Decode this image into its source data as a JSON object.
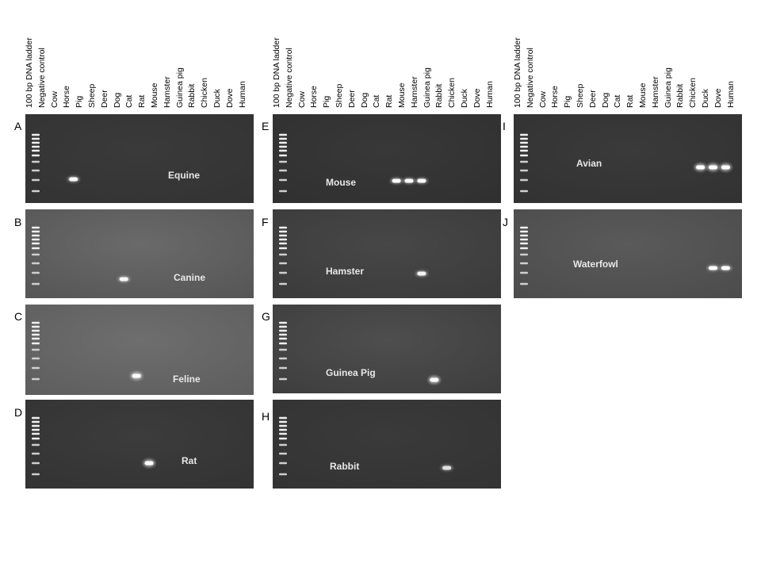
{
  "lane_labels": [
    "100 bp DNA ladder",
    "Negative control",
    "Cow",
    "Horse",
    "Pig",
    "Sheep",
    "Deer",
    "Dog",
    "Cat",
    "Rat",
    "Mouse",
    "Hamster",
    "Guinea pig",
    "Rabbit",
    "Chicken",
    "Duck",
    "Dove",
    "Human"
  ],
  "panels": [
    {
      "letter": "A",
      "label": "Equine",
      "bands": [
        {
          "lane": 3,
          "intensity": 0.95
        }
      ]
    },
    {
      "letter": "B",
      "label": "Canine",
      "bands": [
        {
          "lane": 7,
          "intensity": 0.9
        }
      ]
    },
    {
      "letter": "C",
      "label": "Feline",
      "bands": [
        {
          "lane": 8,
          "intensity": 1.0
        }
      ]
    },
    {
      "letter": "D",
      "label": "Rat",
      "bands": [
        {
          "lane": 9,
          "intensity": 1.0
        }
      ]
    },
    {
      "letter": "E",
      "label": "Mouse",
      "bands": [
        {
          "lane": 9,
          "intensity": 0.95
        },
        {
          "lane": 10,
          "intensity": 0.95
        },
        {
          "lane": 11,
          "intensity": 0.95
        }
      ]
    },
    {
      "letter": "F",
      "label": "Hamster",
      "bands": [
        {
          "lane": 11,
          "intensity": 0.9
        }
      ]
    },
    {
      "letter": "G",
      "label": "Guinea Pig",
      "bands": [
        {
          "lane": 12,
          "intensity": 1.0
        }
      ]
    },
    {
      "letter": "H",
      "label": "Rabbit",
      "bands": [
        {
          "lane": 13,
          "intensity": 0.75
        }
      ]
    },
    {
      "letter": "I",
      "label": "Avian",
      "bands": [
        {
          "lane": 14,
          "intensity": 1.0
        },
        {
          "lane": 15,
          "intensity": 1.0
        },
        {
          "lane": 16,
          "intensity": 1.0
        }
      ]
    },
    {
      "letter": "J",
      "label": "Waterfowl",
      "bands": [
        {
          "lane": 15,
          "intensity": 0.95
        },
        {
          "lane": 16,
          "intensity": 0.95
        }
      ]
    }
  ]
}
